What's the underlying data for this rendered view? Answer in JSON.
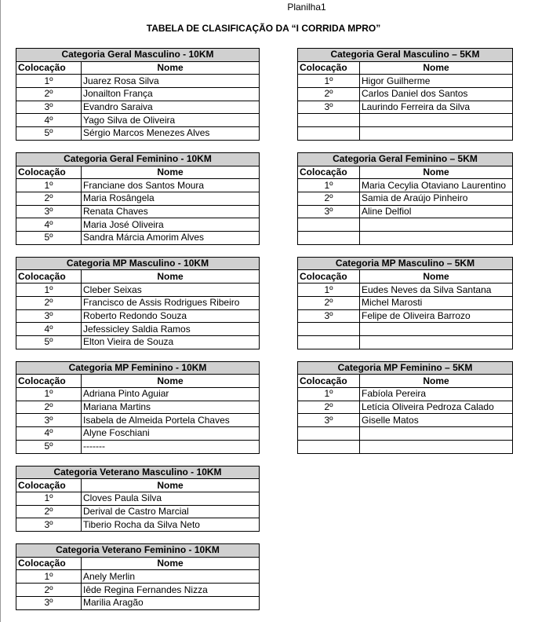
{
  "header": {
    "sheet": "Planilha1",
    "title": "TABELA DE CLASIFICAÇÃO DA “I CORRIDA MPRO”"
  },
  "left": [
    {
      "title": "Categoria Geral Masculino - 10KM",
      "columns": [
        "Colocação",
        "Nome"
      ],
      "rows": [
        [
          "1º",
          "Juarez Rosa Silva"
        ],
        [
          "2º",
          "Jonailton França"
        ],
        [
          "3º",
          "Evandro Saraiva"
        ],
        [
          "4º",
          "Yago Silva de Oliveira"
        ],
        [
          "5º",
          "Sérgio Marcos Menezes Alves"
        ]
      ]
    },
    {
      "title": "Categoria Geral Feminino - 10KM",
      "columns": [
        "Colocação",
        "Nome"
      ],
      "rows": [
        [
          "1º",
          "Franciane dos Santos Moura"
        ],
        [
          "2º",
          "Maria Rosângela"
        ],
        [
          "3º",
          "Renata Chaves"
        ],
        [
          "4º",
          "Maria José Oliveira"
        ],
        [
          "5º",
          "Sandra Márcia Amorim Alves"
        ]
      ]
    },
    {
      "title": "Categoria MP Masculino - 10KM",
      "columns": [
        "Colocação",
        "Nome"
      ],
      "rows": [
        [
          "1º",
          "Cleber Seixas"
        ],
        [
          "2º",
          "Francisco de Assis Rodrigues Ribeiro"
        ],
        [
          "3º",
          "Roberto Redondo Souza"
        ],
        [
          "4º",
          "Jefessicley Saldia Ramos"
        ],
        [
          "5º",
          "Elton Vieira de Souza"
        ]
      ]
    },
    {
      "title": "Categoria MP Feminino - 10KM",
      "columns": [
        "Colocação",
        "Nome"
      ],
      "rows": [
        [
          "1º",
          "Adriana Pinto Aguiar"
        ],
        [
          "2º",
          "Mariana Martins"
        ],
        [
          "3º",
          "Isabela de Almeida Portela Chaves"
        ],
        [
          "4º",
          "Alyne Foschiani"
        ],
        [
          "5º",
          "-------"
        ]
      ]
    },
    {
      "title": "Categoria Veterano Masculino - 10KM",
      "columns": [
        "Colocação",
        "Nome"
      ],
      "rows": [
        [
          "1º",
          "Cloves Paula Silva"
        ],
        [
          "2º",
          "Derival de Castro Marcial"
        ],
        [
          "3º",
          "Tiberio Rocha da Silva Neto"
        ]
      ]
    },
    {
      "title": "Categoria Veterano Feminino - 10KM",
      "columns": [
        "Colocação",
        "Nome"
      ],
      "rows": [
        [
          "1º",
          "Anely Merlin"
        ],
        [
          "2º",
          "Iêde Regina Fernandes Nizza"
        ],
        [
          "3º",
          "Marilia Aragão"
        ]
      ]
    }
  ],
  "right": [
    {
      "title": "Categoria Geral Masculino – 5KM",
      "columns": [
        "Colocação",
        "Nome"
      ],
      "rows": [
        [
          "1º",
          "Higor Guilherme"
        ],
        [
          "2º",
          "Carlos Daniel dos Santos"
        ],
        [
          "3º",
          "Laurindo Ferreira da Silva"
        ]
      ]
    },
    {
      "title": "Categoria Geral Feminino – 5KM",
      "columns": [
        "Colocação",
        "Nome"
      ],
      "rows": [
        [
          "1º",
          "Maria Cecylia Otaviano Laurentino"
        ],
        [
          "2º",
          "Samia de Araújo Pinheiro"
        ],
        [
          "3º",
          "Aline Delfiol"
        ]
      ]
    },
    {
      "title": "Categoria MP Masculino – 5KM",
      "columns": [
        "Colocação",
        "Nome"
      ],
      "rows": [
        [
          "1º",
          "Eudes Neves da Silva Santana"
        ],
        [
          "2º",
          "Michel Marosti"
        ],
        [
          "3º",
          "Felipe de Oliveira Barrozo"
        ]
      ]
    },
    {
      "title": "Categoria MP Feminino – 5KM",
      "columns": [
        "Colocação",
        "Nome"
      ],
      "rows": [
        [
          "1º",
          "Fabíola Pereira"
        ],
        [
          "2º",
          "Letícia Oliveira Pedroza Calado"
        ],
        [
          "3º",
          "Giselle Matos"
        ]
      ]
    }
  ]
}
